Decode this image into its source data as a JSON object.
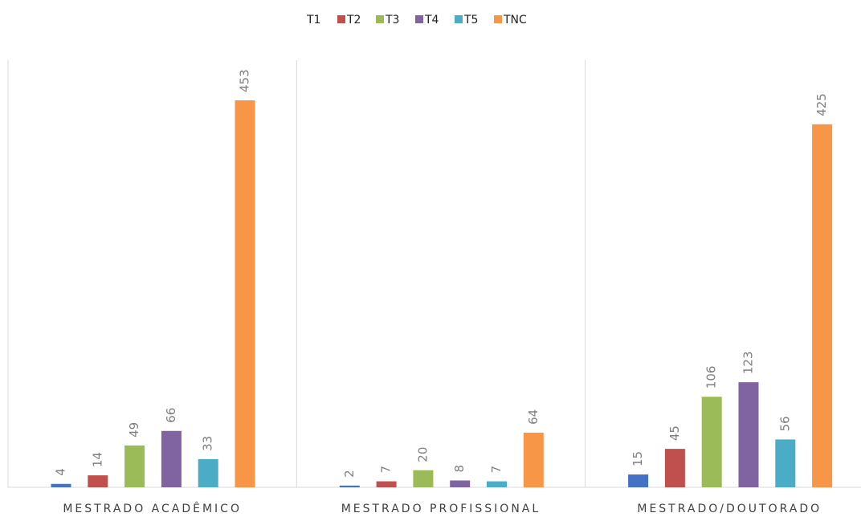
{
  "chart_data": {
    "type": "bar",
    "categories": [
      "MESTRADO ACADÊMICO",
      "MESTRADO PROFISSIONAL",
      "MESTRADO/DOUTORADO"
    ],
    "series": [
      {
        "name": "T1",
        "color": "#4472c4",
        "values": [
          4,
          2,
          15
        ]
      },
      {
        "name": "T2",
        "color": "#c0504d",
        "values": [
          14,
          7,
          45
        ]
      },
      {
        "name": "T3",
        "color": "#9bbb59",
        "values": [
          49,
          20,
          106
        ]
      },
      {
        "name": "T4",
        "color": "#8064a2",
        "values": [
          66,
          8,
          123
        ]
      },
      {
        "name": "T5",
        "color": "#4bacc6",
        "values": [
          33,
          7,
          56
        ]
      },
      {
        "name": "TNC",
        "color": "#f79646",
        "values": [
          453,
          64,
          425
        ]
      }
    ],
    "ylim": [
      0,
      500
    ],
    "legend": "top"
  }
}
